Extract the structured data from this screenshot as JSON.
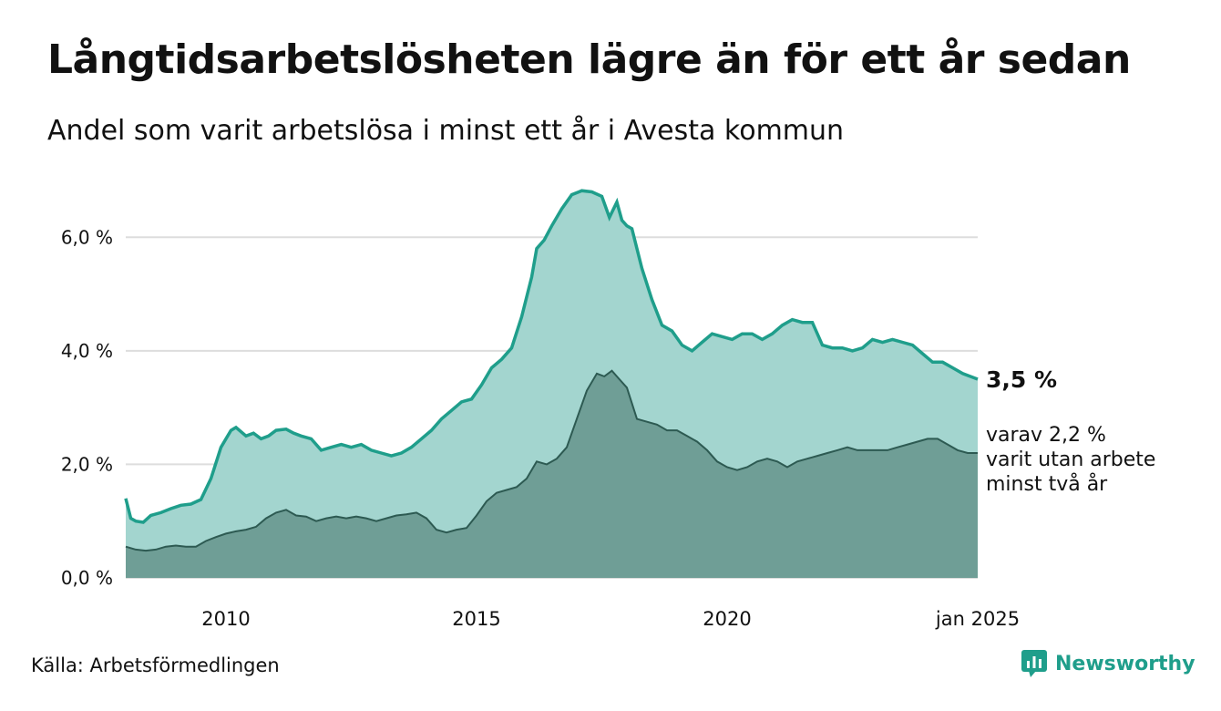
{
  "title": "Långtidsarbetslösheten lägre än för ett år sedan",
  "subtitle": "Andel som varit arbetslösa i minst ett år i Avesta kommun",
  "source": "Källa: Arbetsförmedlingen",
  "brand": "Newsworthy",
  "colors": {
    "line_main": "#1f9e8b",
    "fill_main": "#a3d5cf",
    "line_sub": "#2d5a52",
    "fill_sub": "#6f9e96",
    "grid": "#dddddd"
  },
  "chart_data": {
    "type": "area",
    "title": "Långtidsarbetslösheten lägre än för ett år sedan",
    "subtitle": "Andel som varit arbetslösa i minst ett år i Avesta kommun",
    "ylim": [
      0,
      7
    ],
    "xlim": [
      2008.0,
      2025.0
    ],
    "yticks": [
      0,
      2,
      4,
      6
    ],
    "ytick_labels": [
      "0,0 %",
      "2,0 %",
      "4,0 %",
      "6,0 %"
    ],
    "xticks": [
      2010,
      2015,
      2020,
      2025.0
    ],
    "xtick_labels": [
      "2010",
      "2015",
      "2020",
      "jan 2025"
    ],
    "grid": true,
    "end_label": "3,5 %",
    "sub_label_lines": [
      "varav 2,2 %",
      "varit utan arbete",
      "minst två år"
    ],
    "series": [
      {
        "x": [
          2008.0,
          2008.1,
          2008.2,
          2008.35,
          2008.5,
          2008.7,
          2008.9,
          2009.1,
          2009.3,
          2009.5,
          2009.7,
          2009.9,
          2010.0,
          2010.1,
          2010.2,
          2010.4,
          2010.55,
          2010.7,
          2010.85,
          2011.0,
          2011.2,
          2011.35,
          2011.5,
          2011.7,
          2011.9,
          2012.1,
          2012.3,
          2012.5,
          2012.7,
          2012.9,
          2013.1,
          2013.3,
          2013.5,
          2013.7,
          2013.9,
          2014.1,
          2014.3,
          2014.5,
          2014.7,
          2014.9,
          2015.1,
          2015.3,
          2015.5,
          2015.7,
          2015.9,
          2016.1,
          2016.2,
          2016.35,
          2016.5,
          2016.7,
          2016.9,
          2017.1,
          2017.3,
          2017.5,
          2017.65,
          2017.8,
          2017.9,
          2018.0,
          2018.1,
          2018.3,
          2018.5,
          2018.7,
          2018.9,
          2019.1,
          2019.3,
          2019.5,
          2019.7,
          2019.9,
          2020.1,
          2020.3,
          2020.5,
          2020.7,
          2020.9,
          2021.1,
          2021.3,
          2021.5,
          2021.7,
          2021.9,
          2022.1,
          2022.3,
          2022.5,
          2022.7,
          2022.9,
          2023.1,
          2023.3,
          2023.5,
          2023.7,
          2023.9,
          2024.1,
          2024.3,
          2024.5,
          2024.7,
          2024.85,
          2025.0
        ],
        "values": [
          1.4,
          1.05,
          1.0,
          0.98,
          1.1,
          1.15,
          1.22,
          1.28,
          1.3,
          1.38,
          1.75,
          2.3,
          2.45,
          2.6,
          2.65,
          2.5,
          2.55,
          2.45,
          2.5,
          2.6,
          2.62,
          2.55,
          2.5,
          2.45,
          2.25,
          2.3,
          2.35,
          2.3,
          2.35,
          2.25,
          2.2,
          2.15,
          2.2,
          2.3,
          2.45,
          2.6,
          2.8,
          2.95,
          3.1,
          3.15,
          3.4,
          3.7,
          3.85,
          4.05,
          4.6,
          5.3,
          5.8,
          5.95,
          6.2,
          6.5,
          6.75,
          6.82,
          6.8,
          6.72,
          6.35,
          6.62,
          6.3,
          6.2,
          6.15,
          5.45,
          4.9,
          4.45,
          4.35,
          4.1,
          4.0,
          4.15,
          4.3,
          4.25,
          4.2,
          4.3,
          4.3,
          4.2,
          4.3,
          4.45,
          4.55,
          4.5,
          4.5,
          4.1,
          4.05,
          4.05,
          4.0,
          4.05,
          4.2,
          4.15,
          4.2,
          4.15,
          4.1,
          3.95,
          3.8,
          3.8,
          3.7,
          3.6,
          3.55,
          3.5
        ]
      },
      {
        "x": [
          2008.0,
          2008.2,
          2008.4,
          2008.6,
          2008.8,
          2009.0,
          2009.2,
          2009.4,
          2009.6,
          2009.8,
          2010.0,
          2010.2,
          2010.4,
          2010.6,
          2010.8,
          2011.0,
          2011.2,
          2011.4,
          2011.6,
          2011.8,
          2012.0,
          2012.2,
          2012.4,
          2012.6,
          2012.8,
          2013.0,
          2013.2,
          2013.4,
          2013.6,
          2013.8,
          2014.0,
          2014.2,
          2014.4,
          2014.6,
          2014.8,
          2015.0,
          2015.2,
          2015.4,
          2015.6,
          2015.8,
          2016.0,
          2016.2,
          2016.4,
          2016.6,
          2016.8,
          2017.0,
          2017.2,
          2017.4,
          2017.55,
          2017.7,
          2017.85,
          2018.0,
          2018.2,
          2018.4,
          2018.6,
          2018.8,
          2019.0,
          2019.2,
          2019.4,
          2019.6,
          2019.8,
          2020.0,
          2020.2,
          2020.4,
          2020.6,
          2020.8,
          2021.0,
          2021.2,
          2021.4,
          2021.6,
          2021.8,
          2022.0,
          2022.2,
          2022.4,
          2022.6,
          2022.8,
          2023.0,
          2023.2,
          2023.4,
          2023.6,
          2023.8,
          2024.0,
          2024.2,
          2024.4,
          2024.6,
          2024.8,
          2025.0
        ],
        "values": [
          0.55,
          0.5,
          0.48,
          0.5,
          0.55,
          0.57,
          0.55,
          0.55,
          0.65,
          0.72,
          0.78,
          0.82,
          0.85,
          0.9,
          1.05,
          1.15,
          1.2,
          1.1,
          1.08,
          1.0,
          1.05,
          1.08,
          1.05,
          1.08,
          1.05,
          1.0,
          1.05,
          1.1,
          1.12,
          1.15,
          1.05,
          0.85,
          0.8,
          0.85,
          0.88,
          1.1,
          1.35,
          1.5,
          1.55,
          1.6,
          1.75,
          2.05,
          2.0,
          2.1,
          2.3,
          2.8,
          3.3,
          3.6,
          3.55,
          3.65,
          3.5,
          3.35,
          2.8,
          2.75,
          2.7,
          2.6,
          2.6,
          2.5,
          2.4,
          2.25,
          2.05,
          1.95,
          1.9,
          1.95,
          2.05,
          2.1,
          2.05,
          1.95,
          2.05,
          2.1,
          2.15,
          2.2,
          2.25,
          2.3,
          2.25,
          2.25,
          2.25,
          2.25,
          2.3,
          2.35,
          2.4,
          2.45,
          2.45,
          2.35,
          2.25,
          2.2,
          2.2
        ]
      }
    ]
  }
}
